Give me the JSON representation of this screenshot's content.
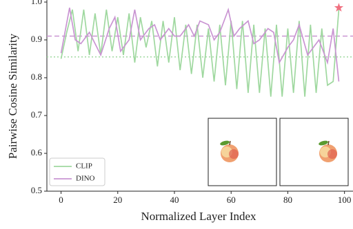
{
  "chart_data": {
    "type": "line",
    "x_label": "Normalized Layer Index",
    "y_label": "Pairwise Cosine Similarity",
    "xlim": [
      -5,
      103
    ],
    "ylim": [
      0.5,
      1.0
    ],
    "xticks": [
      0,
      20,
      40,
      60,
      80,
      100
    ],
    "yticks": [
      0.5,
      0.6,
      0.7,
      0.8,
      0.9,
      {
        "value": 1,
        "label": "1.0"
      }
    ],
    "legend": "lower left",
    "series": [
      {
        "name": "CLIP",
        "color": "#9fd89f",
        "x": [
          0,
          2,
          4,
          6,
          8,
          10,
          12,
          14,
          16,
          18,
          20,
          22,
          24,
          26,
          28,
          30,
          32,
          34,
          36,
          38,
          40,
          42,
          44,
          46,
          48,
          50,
          52,
          54,
          56,
          58,
          60,
          62,
          64,
          66,
          68,
          70,
          72,
          74,
          76,
          78,
          80,
          82,
          84,
          86,
          88,
          90,
          92,
          94,
          96,
          98
        ],
        "values": [
          0.85,
          0.92,
          0.98,
          0.87,
          0.98,
          0.86,
          0.97,
          0.86,
          0.98,
          0.87,
          0.96,
          0.86,
          0.97,
          0.84,
          0.96,
          0.88,
          0.95,
          0.83,
          0.95,
          0.84,
          0.96,
          0.82,
          0.94,
          0.81,
          0.94,
          0.8,
          0.93,
          0.79,
          0.94,
          0.78,
          0.95,
          0.77,
          0.95,
          0.76,
          0.94,
          0.76,
          0.93,
          0.75,
          0.94,
          0.75,
          0.93,
          0.76,
          0.95,
          0.75,
          0.94,
          0.76,
          0.93,
          0.78,
          0.79,
          0.98
        ]
      },
      {
        "name": "DINO",
        "color": "#c994d2",
        "x": [
          0,
          3,
          5,
          7,
          10,
          12,
          14,
          17,
          19,
          21,
          24,
          26,
          28,
          31,
          33,
          35,
          38,
          40,
          42,
          45,
          47,
          49,
          52,
          54,
          56,
          59,
          61,
          63,
          66,
          68,
          70,
          73,
          75,
          77,
          80,
          82,
          84,
          87,
          89,
          91,
          94,
          96,
          98
        ],
        "values": [
          0.865,
          0.985,
          0.9,
          0.89,
          0.92,
          0.89,
          0.86,
          0.93,
          0.96,
          0.87,
          0.9,
          0.98,
          0.9,
          0.93,
          0.94,
          0.9,
          0.93,
          0.91,
          0.91,
          0.94,
          0.91,
          0.95,
          0.94,
          0.9,
          0.92,
          0.98,
          0.91,
          0.93,
          0.95,
          0.89,
          0.9,
          0.93,
          0.92,
          0.84,
          0.88,
          0.9,
          0.94,
          0.86,
          0.88,
          0.9,
          0.84,
          0.93,
          0.79
        ]
      }
    ],
    "hlines": [
      {
        "value": 0.91,
        "color": "#c994d2",
        "style": "dashed"
      },
      {
        "value": 0.855,
        "color": "#9fd89f",
        "style": "dotted"
      }
    ],
    "marker": {
      "x": 98,
      "y": 0.985,
      "color": "#f07080"
    }
  }
}
